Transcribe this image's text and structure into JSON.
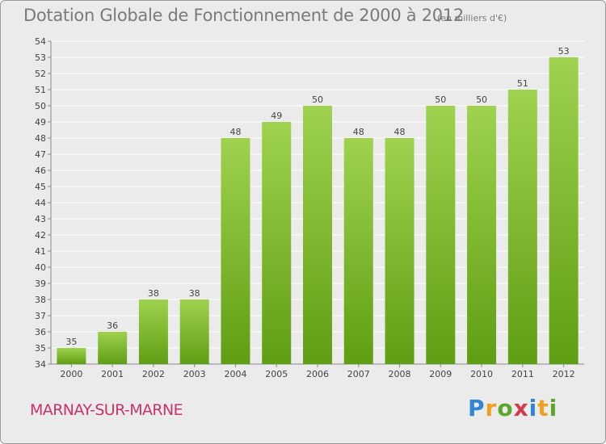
{
  "chart_data": {
    "type": "bar",
    "title": "Dotation Globale de Fonctionnement de 2000 à 2012",
    "subtitle": "(en milliers d'€)",
    "categories": [
      "2000",
      "2001",
      "2002",
      "2003",
      "2004",
      "2005",
      "2006",
      "2007",
      "2008",
      "2009",
      "2010",
      "2011",
      "2012"
    ],
    "values": [
      35,
      36,
      38,
      38,
      48,
      49,
      50,
      48,
      48,
      50,
      50,
      51,
      53
    ],
    "ylim": [
      34,
      54
    ],
    "yticks": [
      34,
      35,
      36,
      37,
      38,
      39,
      40,
      41,
      42,
      43,
      44,
      45,
      46,
      47,
      48,
      49,
      50,
      51,
      52,
      53,
      54
    ],
    "grid": true,
    "bar_color_top": "#9fd24f",
    "bar_color_bottom": "#5f9e12",
    "grid_color": "#ffffff"
  },
  "footer": {
    "commune": "MARNAY-SUR-MARNE",
    "logo_letters": [
      "P",
      "r",
      "o",
      "x",
      "i",
      "t",
      "i"
    ]
  }
}
